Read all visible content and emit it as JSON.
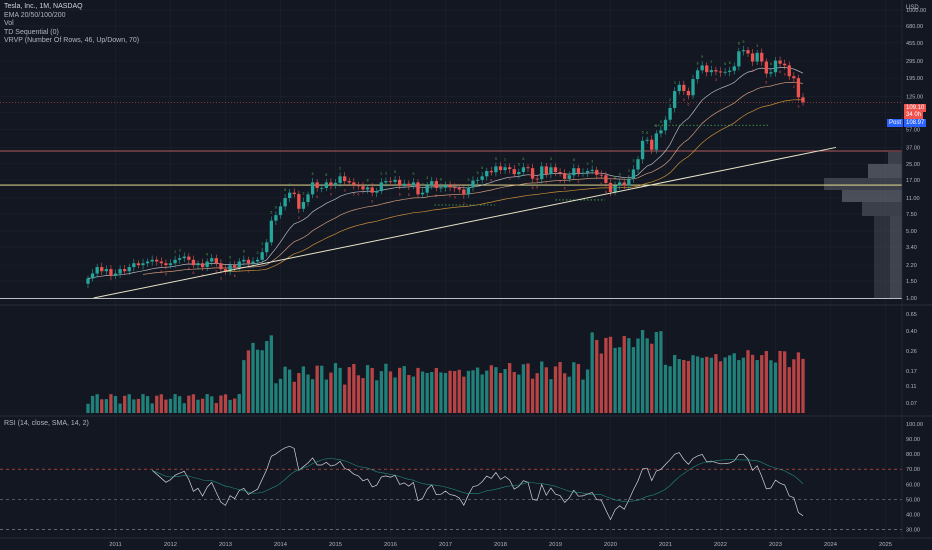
{
  "header": {
    "symbol_line": "Tesla, Inc., 1M, NASDAQ",
    "indicators": [
      "EMA 20/50/100/200",
      "Vol",
      "TD Sequential (0)",
      "VRVP (Number Of Rows, 46, Up/Down, 70)"
    ],
    "currency": "USD"
  },
  "rsi": {
    "legend": "RSI (14, close, SMA, 14, 2)"
  },
  "price_tags": {
    "last": "109.10",
    "countdown": "34 0h",
    "post_label": "Post",
    "post_value": "108.97"
  },
  "colors": {
    "background": "#131722",
    "up": "#26a69a",
    "down": "#ef5350",
    "trendline": "#e8e4c9",
    "grid": "#1e222d"
  },
  "chart_data": [
    {
      "type": "candlestick",
      "title": "Tesla, Inc., 1M, NASDAQ",
      "scale": "log",
      "x_ticks": [
        "2011",
        "2012",
        "2013",
        "2014",
        "2015",
        "2016",
        "2017",
        "2018",
        "2019",
        "2020",
        "2021",
        "2022",
        "2023",
        "2024",
        "2025"
      ],
      "y_ticks": [
        1000,
        680,
        455,
        295,
        195,
        125,
        85,
        57,
        37,
        25,
        17,
        11,
        7.5,
        5,
        3.4,
        2.2,
        1.5,
        1
      ],
      "y_tick_labels": [
        "1000.00",
        "680.00",
        "455.00",
        "295.00",
        "195.00",
        "125.00",
        "85.00",
        "57.00",
        "37.00",
        "25.00",
        "17.00",
        "11.00",
        "7.50",
        "5.00",
        "3.40",
        "2.20",
        "1.50",
        "1.00"
      ],
      "x_range": [
        2010.5,
        2025.3
      ],
      "y_range": [
        1,
        1100
      ],
      "closes": [
        1.6,
        1.8,
        2.1,
        1.9,
        2,
        1.7,
        1.8,
        2,
        1.9,
        2.1,
        2.3,
        2.2,
        2.3,
        2.4,
        2.5,
        2.4,
        2.3,
        2.2,
        2.3,
        2.5,
        2.6,
        2.7,
        2.5,
        2.2,
        2.3,
        2.1,
        2.4,
        2.6,
        2.3,
        2,
        1.9,
        2.2,
        2.1,
        2.4,
        2.5,
        2.3,
        2.4,
        2.5,
        3,
        3.8,
        6.4,
        7.3,
        9,
        11,
        12.5,
        12.1,
        8.5,
        10,
        12,
        16,
        14,
        14,
        16,
        15,
        15.8,
        18.5,
        16.5,
        16,
        15,
        14.6,
        13.5,
        14.2,
        12.5,
        13,
        16,
        16.5,
        16.2,
        17,
        15,
        15.5,
        14.8,
        16,
        12,
        12.5,
        15,
        16.5,
        14,
        14.1,
        15,
        14.2,
        14,
        13.5,
        12,
        14.2,
        16.7,
        17,
        18.5,
        21,
        20.4,
        23.5,
        21.5,
        23,
        22,
        19.5,
        20.5,
        23,
        22.5,
        17.5,
        17.3,
        23.5,
        19.5,
        23,
        20.5,
        20,
        17.4,
        19,
        22.5,
        20.1,
        20.2,
        21,
        21.6,
        19.2,
        19,
        15.8,
        12.7,
        14.9,
        16,
        14.8,
        17.5,
        21.8,
        27.9,
        43.4,
        44.5,
        35,
        51.8,
        55.7,
        71.9,
        95.4,
        142.9,
        166.1,
        143.3,
        129.3,
        190.6,
        235.2,
        264.5,
        225.2,
        236.5,
        229,
        223.7,
        226.6,
        233,
        258.5,
        371.3,
        381.6,
        352.3,
        290.1,
        358,
        290.2,
        217.7,
        224.5,
        297.1,
        275.6,
        265.2,
        204,
        194.7,
        123.2,
        109.1
      ],
      "x_start": 2010.5,
      "x_step": 0.0833333
    },
    {
      "type": "bar",
      "title": "Vol",
      "y_ticks": [
        0.65,
        0.4,
        0.26,
        0.17,
        0.11,
        0.07
      ],
      "y_tick_labels": [
        "0.65",
        "0.40",
        "0.26",
        "0.17",
        "0.11",
        "0.07"
      ]
    },
    {
      "type": "line",
      "title": "RSI (14, close, SMA, 14, 2)",
      "y_ticks": [
        100,
        90,
        80,
        70,
        60,
        50,
        40,
        30
      ],
      "y_tick_labels": [
        "100.00",
        "90.00",
        "80.00",
        "70.00",
        "60.00",
        "50.00",
        "40.00",
        "30.00"
      ],
      "y_range": [
        25,
        100
      ],
      "bands": [
        70,
        50,
        30
      ]
    }
  ]
}
